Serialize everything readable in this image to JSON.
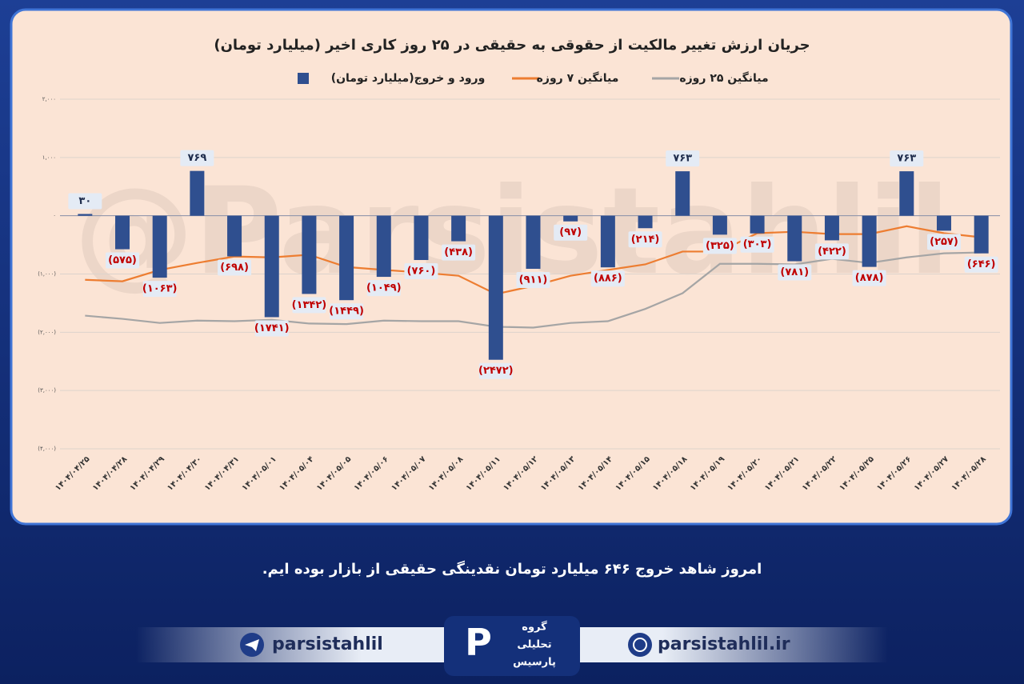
{
  "chart_data": {
    "type": "bar",
    "title": "جریان ارزش تغییر مالکیت از حقوقی به حقیقی در ۲۵ روز کاری اخیر (میلیارد تومان)",
    "watermark": "@Parsistahlil",
    "categories": [
      "۱۴۰۴/۰۴/۲۵",
      "۱۴۰۴/۰۴/۲۸",
      "۱۴۰۴/۰۴/۲۹",
      "۱۴۰۴/۰۴/۳۰",
      "۱۴۰۴/۰۴/۳۱",
      "۱۴۰۴/۰۵/۰۱",
      "۱۴۰۴/۰۵/۰۴",
      "۱۴۰۴/۰۵/۰۵",
      "۱۴۰۴/۰۵/۰۶",
      "۱۴۰۴/۰۵/۰۷",
      "۱۴۰۴/۰۵/۰۸",
      "۱۴۰۴/۰۵/۱۱",
      "۱۴۰۴/۰۵/۱۲",
      "۱۴۰۴/۰۵/۱۳",
      "۱۴۰۴/۰۵/۱۴",
      "۱۴۰۴/۰۵/۱۵",
      "۱۴۰۴/۰۵/۱۸",
      "۱۴۰۴/۰۵/۱۹",
      "۱۴۰۴/۰۵/۲۰",
      "۱۴۰۴/۰۵/۲۱",
      "۱۴۰۴/۰۵/۲۲",
      "۱۴۰۴/۰۵/۲۵",
      "۱۴۰۴/۰۵/۲۶",
      "۱۴۰۴/۰۵/۲۷",
      "۱۴۰۴/۰۵/۲۸"
    ],
    "series": [
      {
        "name": "ورود و خروج(میلیارد تومان)",
        "type": "bar",
        "color": "#2f4f8f",
        "values": [
          30,
          -575,
          -1063,
          769,
          -698,
          -1741,
          -1342,
          -1449,
          -1049,
          -760,
          -438,
          -2472,
          -911,
          -97,
          -886,
          -214,
          763,
          -325,
          -303,
          -781,
          -422,
          -878,
          763,
          -257,
          -646
        ],
        "value_labels": [
          "۳۰",
          "(۵۷۵)",
          "(۱۰۶۳)",
          "۷۶۹",
          "(۶۹۸)",
          "(۱۷۴۱)",
          "(۱۳۴۲)",
          "(۱۴۴۹)",
          "(۱۰۴۹)",
          "(۷۶۰)",
          "(۴۳۸)",
          "(۲۴۷۲)",
          "(۹۱۱)",
          "(۹۷)",
          "(۸۸۶)",
          "(۲۱۴)",
          "۷۶۳",
          "(۳۲۵)",
          "(۳۰۳)",
          "(۷۸۱)",
          "(۴۲۲)",
          "(۸۷۸)",
          "۷۶۳",
          "(۲۵۷)",
          "(۶۴۶)"
        ]
      },
      {
        "name": "میانگین ۷ روزه",
        "type": "line",
        "color": "#ed7d31",
        "values": [
          -1100,
          -1125,
          -930,
          -810,
          -700,
          -715,
          -670,
          -880,
          -930,
          -975,
          -1030,
          -1345,
          -1205,
          -1030,
          -930,
          -835,
          -615,
          -615,
          -300,
          -275,
          -315,
          -315,
          -180,
          -300,
          -370
        ]
      },
      {
        "name": "میانگین ۲۵ روزه",
        "type": "line",
        "color": "#a5a5a5",
        "values": [
          -1715,
          -1770,
          -1840,
          -1800,
          -1810,
          -1785,
          -1850,
          -1860,
          -1800,
          -1810,
          -1810,
          -1905,
          -1920,
          -1840,
          -1810,
          -1600,
          -1330,
          -825,
          -825,
          -835,
          -740,
          -810,
          -715,
          -645,
          -630
        ]
      }
    ],
    "ylim": [
      -4000,
      2000
    ],
    "yticks": [
      {
        "value": 2000,
        "label": "۲,۰۰۰"
      },
      {
        "value": 1000,
        "label": "۱,۰۰۰"
      },
      {
        "value": 0,
        "label": "۰"
      },
      {
        "value": -1000,
        "label": "(۱,۰۰۰)"
      },
      {
        "value": -2000,
        "label": "(۲,۰۰۰)"
      },
      {
        "value": -3000,
        "label": "(۳,۰۰۰)"
      },
      {
        "value": -4000,
        "label": "(۴,۰۰۰)"
      }
    ],
    "grid": true
  },
  "caption": "امروز شاهد خروج ۶۴۶ میلیارد تومان نقدینگی حقیقی از بازار بوده ایم.",
  "footer": {
    "telegram": "parsistahlil",
    "website": "parsistahlil.ir",
    "logo": [
      "گروه",
      "تحلیلی",
      "پارسیس"
    ]
  }
}
